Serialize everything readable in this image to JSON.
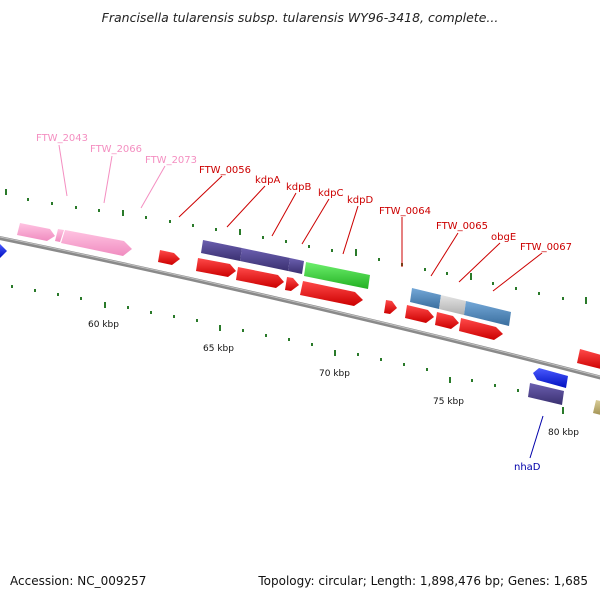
{
  "title": "Francisella tularensis subsp. tularensis WY96-3418, complete...",
  "footer": {
    "accession": "Accession: NC_009257",
    "topology": "Topology: circular; Length: 1,898,476 bp; Genes: 1,685"
  },
  "scale_labels": [
    "60 kbp",
    "65 kbp",
    "70 kbp",
    "75 kbp",
    "80 kbp"
  ],
  "gene_labels": [
    {
      "text": "FTW_2043",
      "color": "#f48fc1"
    },
    {
      "text": "FTW_2066",
      "color": "#f48fc1"
    },
    {
      "text": "FTW_2073",
      "color": "#f48fc1"
    },
    {
      "text": "FTW_0056",
      "color": "#cc0000"
    },
    {
      "text": "kdpA",
      "color": "#cc0000"
    },
    {
      "text": "kdpB",
      "color": "#cc0000"
    },
    {
      "text": "kdpC",
      "color": "#cc0000"
    },
    {
      "text": "kdpD",
      "color": "#cc0000"
    },
    {
      "text": "FTW_0064",
      "color": "#cc0000"
    },
    {
      "text": "FTW_0065",
      "color": "#cc0000"
    },
    {
      "text": "obgE",
      "color": "#cc0000"
    },
    {
      "text": "FTW_0067",
      "color": "#cc0000"
    },
    {
      "text": "nhaD",
      "color": "#0000aa"
    }
  ],
  "colors": {
    "backbone": "#888888",
    "tick": "#2a7a2a",
    "cds_red": "#ee0000",
    "pink": "#f7a8d0",
    "purple": "#4a3f8a",
    "green": "#2ec82e",
    "steelblue": "#4682b4",
    "grey": "#c8c8c8",
    "blue": "#0a18e6",
    "khaki": "#b8a870"
  }
}
